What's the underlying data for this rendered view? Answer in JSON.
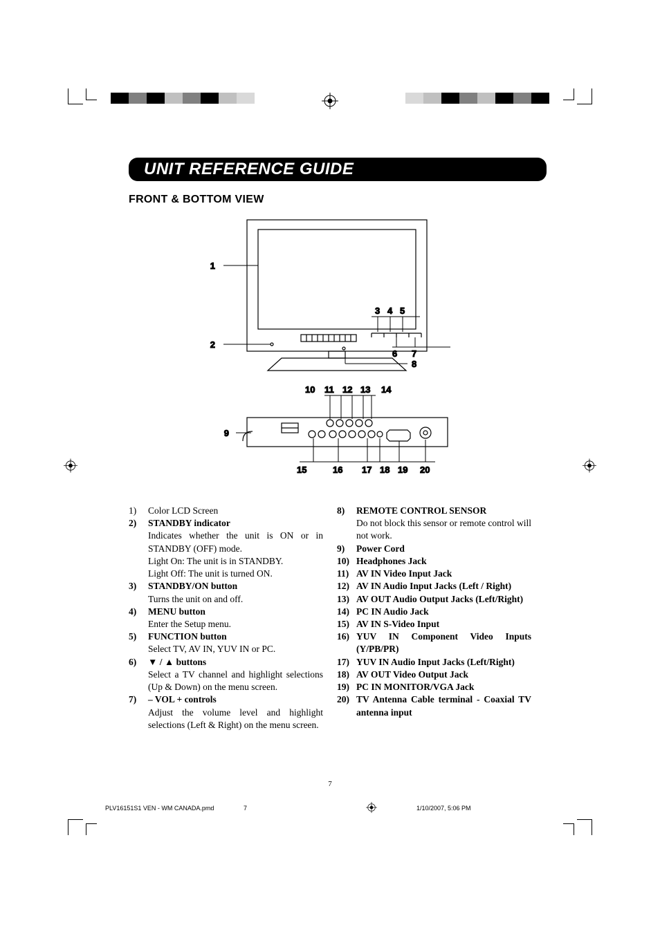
{
  "title": "UNIT REFERENCE GUIDE",
  "section_heading": "FRONT & BOTTOM VIEW",
  "diagram": {
    "callouts_left": [
      "1",
      "2",
      "9"
    ],
    "callouts_right": [
      "3",
      "4",
      "5",
      "6",
      "7",
      "8"
    ],
    "callouts_mid": [
      "10",
      "11",
      "12",
      "13",
      "14"
    ],
    "callouts_bot": [
      "15",
      "16",
      "17",
      "18",
      "19",
      "20"
    ]
  },
  "items_left": [
    {
      "n": "1)",
      "bold": "",
      "head": "Color LCD Screen",
      "head_bold": false,
      "rest": ""
    },
    {
      "n": "2)",
      "bold": "STANDBY indicator",
      "head": "",
      "rest": "Indicates whether the unit is ON or in STANDBY (OFF) mode.\nLight On: The unit is in STANDBY.\nLight Off: The unit is turned ON."
    },
    {
      "n": "3)",
      "bold": "STANDBY/ON button",
      "head": "",
      "rest": "Turns the unit on and off."
    },
    {
      "n": "4)",
      "bold": "MENU button",
      "head": "",
      "rest": "Enter the Setup menu."
    },
    {
      "n": "5)",
      "bold": "FUNCTION button",
      "head": "",
      "rest": "Select TV, AV IN, YUV IN or PC."
    },
    {
      "n": "6)",
      "bold": "▼ / ▲ buttons",
      "head": "",
      "rest": "Select a TV channel and highlight selections (Up & Down) on the menu screen."
    },
    {
      "n": "7)",
      "bold": "– VOL + controls",
      "head": "",
      "rest": "Adjust the volume level and highlight selections (Left & Right) on the menu screen."
    }
  ],
  "items_right": [
    {
      "n": "8)",
      "bold": "REMOTE CONTROL SENSOR",
      "rest": "Do not block this sensor or remote control will not work."
    },
    {
      "n": "9)",
      "bold": "Power Cord",
      "rest": ""
    },
    {
      "n": "10)",
      "bold": "Headphones Jack",
      "rest": ""
    },
    {
      "n": "11)",
      "bold": "AV IN Video Input Jack",
      "rest": ""
    },
    {
      "n": "12)",
      "bold": "AV IN Audio Input Jacks (Left / Right)",
      "rest": ""
    },
    {
      "n": "13)",
      "bold": "AV OUT Audio Output Jacks (Left/Right)",
      "rest": ""
    },
    {
      "n": "14)",
      "bold": "PC IN Audio Jack",
      "rest": ""
    },
    {
      "n": "15)",
      "bold": "AV IN S-Video Input",
      "rest": ""
    },
    {
      "n": "16)",
      "bold": "YUV IN Component Video Inputs  (Y/PB/PR)",
      "rest": ""
    },
    {
      "n": "17)",
      "bold": "YUV IN Audio Input Jacks (Left/Right)",
      "rest": ""
    },
    {
      "n": "18)",
      "bold": "AV OUT Video Output Jack",
      "rest": ""
    },
    {
      "n": "19)",
      "bold": "PC IN MONITOR/VGA Jack",
      "rest": ""
    },
    {
      "n": "20)",
      "bold": "TV Antenna Cable terminal - Coaxial TV antenna input",
      "rest": ""
    }
  ],
  "page_number": "7",
  "footer": {
    "filename": "PLV16151S1 VEN - WM CANADA.pmd",
    "page": "7",
    "timestamp": "1/10/2007, 5:06 PM"
  },
  "swatch_colors_left": [
    "#000000",
    "#808080",
    "#000000",
    "#c0c0c0",
    "#808080",
    "#000000",
    "#c0c0c0",
    "#d9d9d9"
  ],
  "swatch_colors_right": [
    "#000000",
    "#808080",
    "#000000",
    "#c0c0c0",
    "#808080",
    "#000000",
    "#c0c0c0",
    "#d9d9d9"
  ],
  "colors": {
    "page_bg": "#ffffff",
    "text": "#000000",
    "title_bg": "#000000",
    "title_fg": "#ffffff"
  },
  "typography": {
    "title_font": "Optima italic bold",
    "title_size_pt": 18,
    "heading_font": "Optima bold",
    "heading_size_pt": 12,
    "body_font": "Times / Helvetica",
    "body_size_pt": 10
  }
}
